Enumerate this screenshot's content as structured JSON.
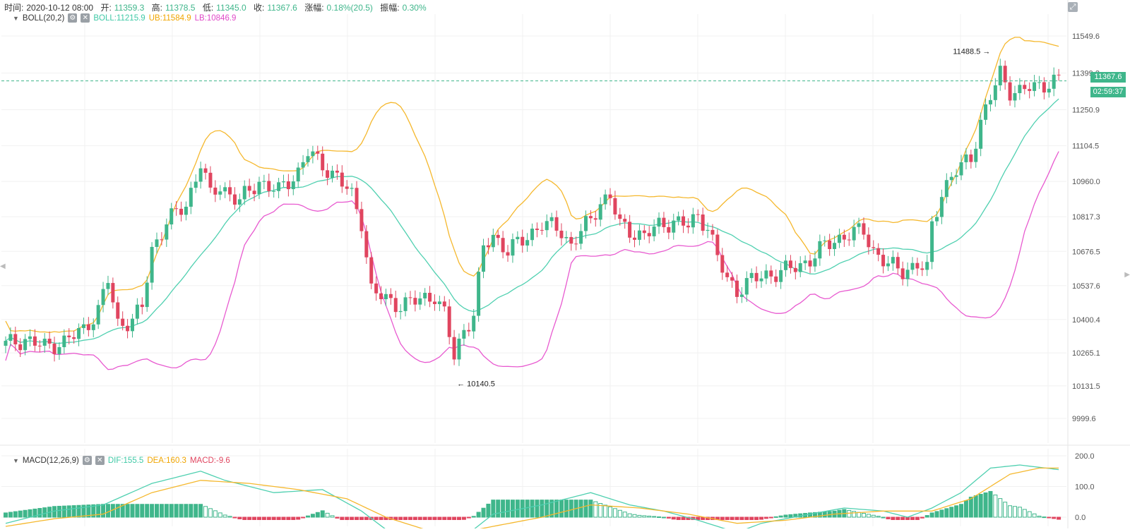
{
  "header": {
    "time_label": "时间:",
    "time_value": "2020-10-12 08:00",
    "open_label": "开:",
    "open_value": "11359.3",
    "high_label": "高:",
    "high_value": "11378.5",
    "low_label": "低:",
    "low_value": "11345.0",
    "close_label": "收:",
    "close_value": "11367.6",
    "change_label": "涨幅:",
    "change_value": "0.18%(20.5)",
    "amp_label": "振幅:",
    "amp_value": "0.30%"
  },
  "boll_legend": {
    "name": "BOLL(20,2)",
    "boll": "BOLL:11215.9",
    "ub": "UB:11584.9",
    "lb": "LB:10846.9"
  },
  "macd_legend": {
    "name": "MACD(12,26,9)",
    "dif": "DIF:155.5",
    "dea": "DEA:160.3",
    "macd": "MACD:-9.6"
  },
  "price_tag": {
    "price": "11367.6",
    "countdown": "02:59:37"
  },
  "icons": {
    "settings": "gear-icon",
    "close": "close-icon",
    "collapse": "chevron-down-icon",
    "expand": "expand-icon"
  },
  "colors": {
    "up": "#3fb68b",
    "down": "#e0455f",
    "mid": "#4fd0b0",
    "ub": "#f5b82e",
    "lb": "#e85ad0",
    "dif": "#4fd0b0",
    "dea": "#f5b82e"
  },
  "chart_data": [
    {
      "type": "candlestick",
      "title": "",
      "y_ticks": [
        "11549.6",
        "11399.3",
        "11250.9",
        "11104.5",
        "10960.0",
        "10817.3",
        "10676.5",
        "10537.6",
        "10400.4",
        "10265.1",
        "10131.5",
        "9999.6"
      ],
      "ylim": [
        9950,
        11650
      ],
      "annotations": [
        {
          "label": "11488.5 →",
          "price": 11488.5,
          "bar": 203
        },
        {
          "label": "← 10140.5",
          "price": 10140.5,
          "bar": 92
        }
      ],
      "last_price_line": 11367.6,
      "close_anchors": [
        [
          0,
          10300
        ],
        [
          4,
          10320
        ],
        [
          8,
          10290
        ],
        [
          12,
          10310
        ],
        [
          16,
          10360
        ],
        [
          19,
          10440
        ],
        [
          21,
          10560
        ],
        [
          23,
          10380
        ],
        [
          26,
          10400
        ],
        [
          28,
          10450
        ],
        [
          30,
          10680
        ],
        [
          33,
          10800
        ],
        [
          37,
          10860
        ],
        [
          40,
          11040
        ],
        [
          42,
          10900
        ],
        [
          44,
          10940
        ],
        [
          48,
          10880
        ],
        [
          52,
          10960
        ],
        [
          56,
          10920
        ],
        [
          60,
          11000
        ],
        [
          62,
          11080
        ],
        [
          64,
          11040
        ],
        [
          68,
          10980
        ],
        [
          71,
          10900
        ],
        [
          73,
          10800
        ],
        [
          75,
          10520
        ],
        [
          78,
          10480
        ],
        [
          81,
          10460
        ],
        [
          85,
          10480
        ],
        [
          88,
          10500
        ],
        [
          90,
          10420
        ],
        [
          92,
          10250
        ],
        [
          94,
          10360
        ],
        [
          96,
          10420
        ],
        [
          98,
          10690
        ],
        [
          100,
          10740
        ],
        [
          103,
          10680
        ],
        [
          106,
          10720
        ],
        [
          110,
          10790
        ],
        [
          114,
          10760
        ],
        [
          116,
          10700
        ],
        [
          118,
          10760
        ],
        [
          120,
          10800
        ],
        [
          122,
          10880
        ],
        [
          124,
          10900
        ],
        [
          126,
          10780
        ],
        [
          128,
          10760
        ],
        [
          131,
          10740
        ],
        [
          134,
          10780
        ],
        [
          137,
          10800
        ],
        [
          140,
          10780
        ],
        [
          142,
          10820
        ],
        [
          144,
          10780
        ],
        [
          146,
          10650
        ],
        [
          148,
          10560
        ],
        [
          150,
          10520
        ],
        [
          153,
          10560
        ],
        [
          156,
          10580
        ],
        [
          160,
          10600
        ],
        [
          163,
          10620
        ],
        [
          166,
          10660
        ],
        [
          168,
          10700
        ],
        [
          172,
          10740
        ],
        [
          176,
          10760
        ],
        [
          178,
          10680
        ],
        [
          181,
          10620
        ],
        [
          184,
          10600
        ],
        [
          187,
          10620
        ],
        [
          189,
          10600
        ],
        [
          190,
          10780
        ],
        [
          192,
          10920
        ],
        [
          195,
          11000
        ],
        [
          198,
          11060
        ],
        [
          200,
          11200
        ],
        [
          202,
          11300
        ],
        [
          204,
          11400
        ],
        [
          206,
          11330
        ],
        [
          208,
          11320
        ],
        [
          210,
          11340
        ],
        [
          212,
          11350
        ],
        [
          214,
          11360
        ],
        [
          216,
          11368
        ]
      ],
      "bars_count": 217
    },
    {
      "type": "bar",
      "title": "",
      "y_ticks": [
        "200.0",
        "100.0",
        "0.0"
      ],
      "ylim": [
        0,
        210
      ],
      "series": [
        {
          "name": "DIF",
          "anchors": [
            [
              0,
              -20
            ],
            [
              10,
              20
            ],
            [
              20,
              40
            ],
            [
              30,
              110
            ],
            [
              40,
              150
            ],
            [
              45,
              120
            ],
            [
              55,
              80
            ],
            [
              65,
              90
            ],
            [
              73,
              20
            ],
            [
              78,
              -40
            ],
            [
              90,
              -80
            ],
            [
              96,
              -40
            ],
            [
              100,
              10
            ],
            [
              110,
              40
            ],
            [
              120,
              80
            ],
            [
              128,
              40
            ],
            [
              135,
              20
            ],
            [
              142,
              -10
            ],
            [
              150,
              -50
            ],
            [
              155,
              -20
            ],
            [
              165,
              10
            ],
            [
              172,
              30
            ],
            [
              180,
              20
            ],
            [
              185,
              0
            ],
            [
              190,
              30
            ],
            [
              196,
              80
            ],
            [
              202,
              160
            ],
            [
              208,
              170
            ],
            [
              216,
              155
            ]
          ]
        },
        {
          "name": "DEA",
          "anchors": [
            [
              0,
              -30
            ],
            [
              10,
              -5
            ],
            [
              20,
              10
            ],
            [
              30,
              80
            ],
            [
              40,
              120
            ],
            [
              50,
              110
            ],
            [
              60,
              90
            ],
            [
              70,
              60
            ],
            [
              78,
              0
            ],
            [
              90,
              -60
            ],
            [
              100,
              -30
            ],
            [
              110,
              0
            ],
            [
              120,
              40
            ],
            [
              130,
              30
            ],
            [
              140,
              10
            ],
            [
              150,
              -20
            ],
            [
              160,
              -10
            ],
            [
              170,
              10
            ],
            [
              180,
              20
            ],
            [
              190,
              20
            ],
            [
              198,
              60
            ],
            [
              206,
              140
            ],
            [
              212,
              160
            ],
            [
              216,
              160
            ]
          ]
        }
      ]
    }
  ]
}
